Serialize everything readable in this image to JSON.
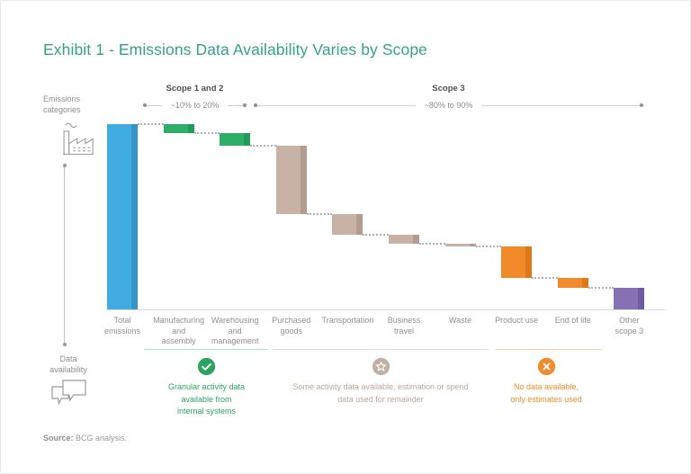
{
  "title": "Exhibit 1 - Emissions Data Availability Varies by Scope",
  "annotations": {
    "scope12": {
      "label": "Scope 1 and 2",
      "range": "~10% to 20%"
    },
    "scope3": {
      "label": "Scope 3",
      "range": "~80% to 90%"
    }
  },
  "side_labels": {
    "emissions": "Emissions\ncategories",
    "availability": "Data\navailability",
    "emissions_icon": "factory-icon",
    "availability_icon": "speech-bubbles-icon"
  },
  "chart_data": {
    "type": "bar",
    "subtype": "waterfall-descending",
    "title": "Exhibit 1 - Emissions Data Availability Varies by Scope",
    "categories": [
      "Total emissions",
      "Manufacturing and assembly",
      "Warehousing and management",
      "Purchased goods",
      "Transportation",
      "Business travel",
      "Waste",
      "Product use",
      "End of life",
      "Other scope 3"
    ],
    "category_labels_multiline": [
      "Total\nemissions",
      "Manufacturing\nand\nassembly",
      "Warehousing\nand\nmanagement",
      "Purchased\ngoods",
      "Transportation",
      "Business\ntravel",
      "Waste",
      "Product use",
      "End of life",
      "Other\nscope 3"
    ],
    "values_pct_of_total": [
      100,
      5,
      6.5,
      37,
      11,
      5,
      1.5,
      17,
      5.5,
      11.5
    ],
    "values_note": "estimated from bar heights; chart shows no numeric labels",
    "groups": [
      "total",
      "granular",
      "granular",
      "partial",
      "partial",
      "partial",
      "partial",
      "estimated",
      "estimated",
      "other-scope3"
    ],
    "scope_brackets": [
      {
        "label": "Scope 1 and 2",
        "range": "~10% to 20%",
        "covers": [
          "Manufacturing and assembly",
          "Warehousing and management"
        ]
      },
      {
        "label": "Scope 3",
        "range": "~80% to 90%",
        "covers": [
          "Purchased goods",
          "Transportation",
          "Business travel",
          "Waste",
          "Product use",
          "End of life",
          "Other scope 3"
        ]
      }
    ],
    "ylim": [
      0,
      100
    ],
    "grid": false,
    "legend_position": "bottom"
  },
  "colors": {
    "title_accent": "#35A287",
    "bars": {
      "total": {
        "fill": "#41ACE1",
        "edge": "#3595C6"
      },
      "granular": {
        "fill": "#2FAE68",
        "edge": "#23995A"
      },
      "partial": {
        "fill": "#C8B1A5",
        "edge": "#B29B8F"
      },
      "estimated": {
        "fill": "#F18A28",
        "edge": "#DD7916"
      },
      "other-scope3": {
        "fill": "#8571B4",
        "edge": "#6F5AA3"
      }
    }
  },
  "legend": {
    "items": [
      {
        "icon": "check-circle-icon",
        "color": "#2BA45F",
        "rule_color": "#ACDACB",
        "text_color": "#2BA463",
        "text": "Granular activity data\navailable from\ninternal systems"
      },
      {
        "icon": "star-circle-icon",
        "color": "#C3B0A5",
        "rule_color": "#DCDCDC",
        "text_color": "#B7A79C",
        "text": "Some activity data available, estimation or spend\ndata used for remainder"
      },
      {
        "icon": "x-circle-icon",
        "color": "#F18A28",
        "rule_color": "#F6D2A9",
        "text_color": "#F18A28",
        "text": "No data available,\nonly estimates used"
      }
    ]
  },
  "source": {
    "label": "Source:",
    "text": " BCG analysis."
  }
}
